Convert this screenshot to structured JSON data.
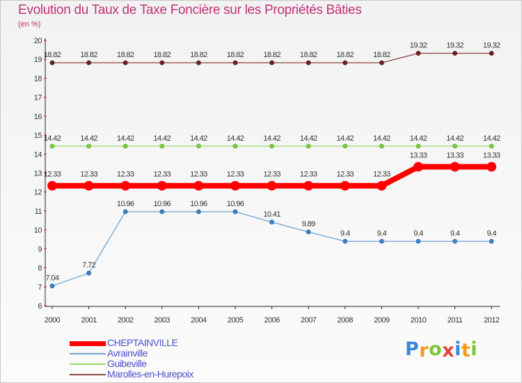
{
  "chart_data": {
    "type": "line",
    "title": "Evolution du Taux de Taxe Foncière sur les Propriétés Bâties",
    "subtitle": "(en %)",
    "xlabel": "",
    "ylabel": "",
    "x": [
      "2000",
      "2001",
      "2002",
      "2003",
      "2004",
      "2005",
      "2006",
      "2007",
      "2008",
      "2009",
      "2010",
      "2011",
      "2012"
    ],
    "ylim": [
      6,
      20
    ],
    "yticks": [
      6,
      7,
      8,
      9,
      10,
      11,
      12,
      13,
      14,
      15,
      16,
      17,
      18,
      19,
      20
    ],
    "grid": false,
    "legend_position": "bottom-left",
    "series": [
      {
        "name": "CHEPTAINVILLE",
        "color": "#ff0000",
        "values": [
          12.33,
          12.33,
          12.33,
          12.33,
          12.33,
          12.33,
          12.33,
          12.33,
          12.33,
          12.33,
          13.33,
          13.33,
          13.33
        ],
        "labels": [
          "12.33",
          "12.33",
          "12.33",
          "12.33",
          "12.33",
          "12.33",
          "12.33",
          "12.33",
          "12.33",
          "12.33",
          "13.33",
          "13.33",
          "13.33"
        ]
      },
      {
        "name": "Avrainville",
        "color": "#6fa3d3",
        "values": [
          7.04,
          7.72,
          10.96,
          10.96,
          10.96,
          10.96,
          10.41,
          9.89,
          9.4,
          9.4,
          9.4,
          9.4,
          9.4
        ],
        "labels": [
          "7.04",
          "7.72",
          "10.96",
          "10.96",
          "10.96",
          "10.96",
          "10.41",
          "9.89",
          "9.4",
          "9.4",
          "9.4",
          "9.4",
          "9.4"
        ]
      },
      {
        "name": "Guibeville",
        "color": "#99dd66",
        "values": [
          14.42,
          14.42,
          14.42,
          14.42,
          14.42,
          14.42,
          14.42,
          14.42,
          14.42,
          14.42,
          14.42,
          14.42,
          14.42
        ],
        "labels": [
          "14.42",
          "14.42",
          "14.42",
          "14.42",
          "14.42",
          "14.42",
          "14.42",
          "14.42",
          "14.42",
          "14.42",
          "14.42",
          "14.42",
          "14.42"
        ]
      },
      {
        "name": "Marolles-en-Hurepoix",
        "color": "#884444",
        "values": [
          18.82,
          18.82,
          18.82,
          18.82,
          18.82,
          18.82,
          18.82,
          18.82,
          18.82,
          18.82,
          19.32,
          19.32,
          19.32
        ],
        "labels": [
          "18.82",
          "18.82",
          "18.82",
          "18.82",
          "18.82",
          "18.82",
          "18.82",
          "18.82",
          "18.82",
          "18.82",
          "19.32",
          "19.32",
          "19.32"
        ]
      }
    ]
  },
  "logo": {
    "letters": [
      "P",
      "r",
      "o",
      "x",
      "i",
      "t",
      "i"
    ],
    "colors": [
      "#3a86d8",
      "#f29a1e",
      "#7cc43a",
      "#e0423c",
      "#3a86d8",
      "#f29a1e",
      "#7cc43a"
    ]
  }
}
